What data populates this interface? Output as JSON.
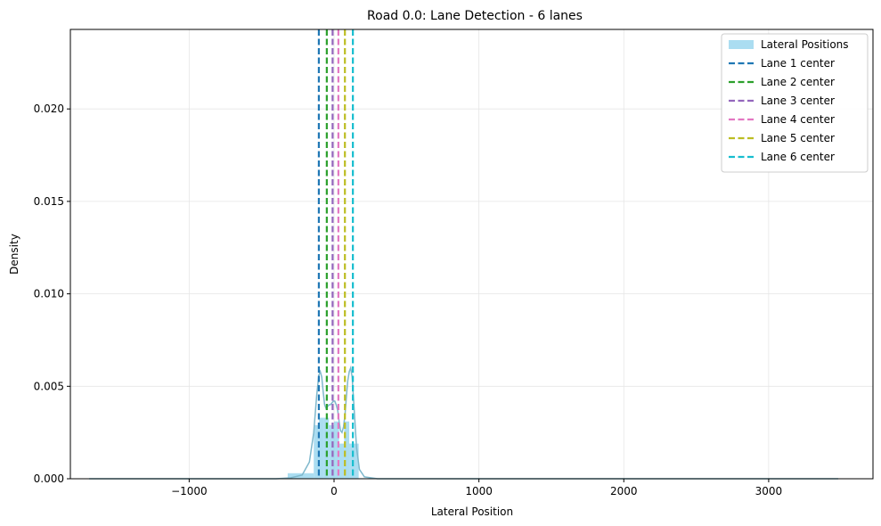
{
  "chart_data": {
    "type": "histogram",
    "title": "Road 0.0: Lane Detection - 6 lanes",
    "xlabel": "Lateral Position",
    "ylabel": "Density",
    "xlim": [
      -1820,
      3720
    ],
    "ylim": [
      0,
      0.0243
    ],
    "xticks": [
      -1000,
      0,
      1000,
      2000,
      3000
    ],
    "xtick_labels": [
      "−1000",
      "0",
      "1000",
      "2000",
      "3000"
    ],
    "yticks": [
      0,
      0.005,
      0.01,
      0.015,
      0.02
    ],
    "ytick_labels": [
      "0.000",
      "0.005",
      "0.010",
      "0.015",
      "0.020"
    ],
    "grid": true,
    "legend_position": "top-right",
    "histogram": {
      "name": "Lateral Positions",
      "color": "#87ceeb",
      "bins": [
        {
          "x0": -1690,
          "x1": -320,
          "density": 3e-05
        },
        {
          "x0": -320,
          "x1": -140,
          "density": 0.0003
        },
        {
          "x0": -140,
          "x1": -105,
          "density": 0.0029
        },
        {
          "x0": -105,
          "x1": -70,
          "density": 0.0033
        },
        {
          "x0": -70,
          "x1": -35,
          "density": 0.0033
        },
        {
          "x0": -35,
          "x1": 0,
          "density": 0.0029
        },
        {
          "x0": 0,
          "x1": 35,
          "density": 0.0031
        },
        {
          "x0": 35,
          "x1": 70,
          "density": 0.0019
        },
        {
          "x0": 70,
          "x1": 105,
          "density": 0.0031
        },
        {
          "x0": 105,
          "x1": 170,
          "density": 0.0019
        },
        {
          "x0": 170,
          "x1": 3480,
          "density": 3e-05
        }
      ]
    },
    "kde": {
      "color": "#7fb8cc",
      "points": [
        [
          -1690,
          0.0
        ],
        [
          -400,
          0.0
        ],
        [
          -300,
          5e-05
        ],
        [
          -220,
          0.0002
        ],
        [
          -170,
          0.0009
        ],
        [
          -140,
          0.0025
        ],
        [
          -120,
          0.0045
        ],
        [
          -105,
          0.0056
        ],
        [
          -95,
          0.0058
        ],
        [
          -85,
          0.0055
        ],
        [
          -75,
          0.0047
        ],
        [
          -65,
          0.004
        ],
        [
          -55,
          0.0038
        ],
        [
          -45,
          0.0039
        ],
        [
          -35,
          0.004
        ],
        [
          -25,
          0.004
        ],
        [
          -15,
          0.0041
        ],
        [
          -5,
          0.0042
        ],
        [
          5,
          0.0042
        ],
        [
          15,
          0.004
        ],
        [
          25,
          0.0037
        ],
        [
          35,
          0.0031
        ],
        [
          45,
          0.0026
        ],
        [
          55,
          0.0025
        ],
        [
          65,
          0.0028
        ],
        [
          75,
          0.0034
        ],
        [
          85,
          0.0044
        ],
        [
          95,
          0.0053
        ],
        [
          105,
          0.0058
        ],
        [
          115,
          0.006
        ],
        [
          125,
          0.0055
        ],
        [
          140,
          0.0036
        ],
        [
          155,
          0.0017
        ],
        [
          175,
          0.0005
        ],
        [
          210,
          0.0001
        ],
        [
          300,
          0.0
        ],
        [
          3480,
          0.0
        ]
      ]
    },
    "lanes": [
      {
        "name": "Lane 1 center",
        "x": -105,
        "color": "#1f77b4"
      },
      {
        "name": "Lane 2 center",
        "x": -50,
        "color": "#2ca02c"
      },
      {
        "name": "Lane 3 center",
        "x": -10,
        "color": "#9467bd"
      },
      {
        "name": "Lane 4 center",
        "x": 30,
        "color": "#e377c2"
      },
      {
        "name": "Lane 5 center",
        "x": 75,
        "color": "#bcbd22"
      },
      {
        "name": "Lane 6 center",
        "x": 130,
        "color": "#17becf"
      }
    ]
  }
}
